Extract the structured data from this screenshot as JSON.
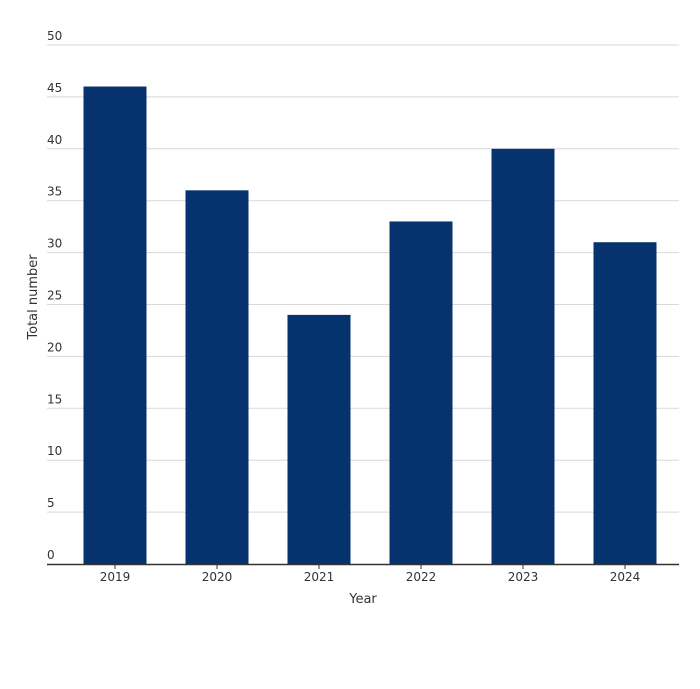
{
  "chart_data": {
    "type": "bar",
    "title": "",
    "xlabel": "Year",
    "ylabel": "Total number",
    "categories": [
      "2019",
      "2020",
      "2021",
      "2022",
      "2023",
      "2024"
    ],
    "values": [
      46,
      36,
      24,
      33,
      40,
      31
    ],
    "ylim": [
      0,
      50
    ],
    "yticks": [
      0,
      5,
      10,
      15,
      20,
      25,
      30,
      35,
      40,
      45,
      50
    ],
    "grid": true,
    "legend": "none",
    "bar_color": "#06326e",
    "grid_color": "#d9d9d9",
    "axis_color": "#333333"
  }
}
